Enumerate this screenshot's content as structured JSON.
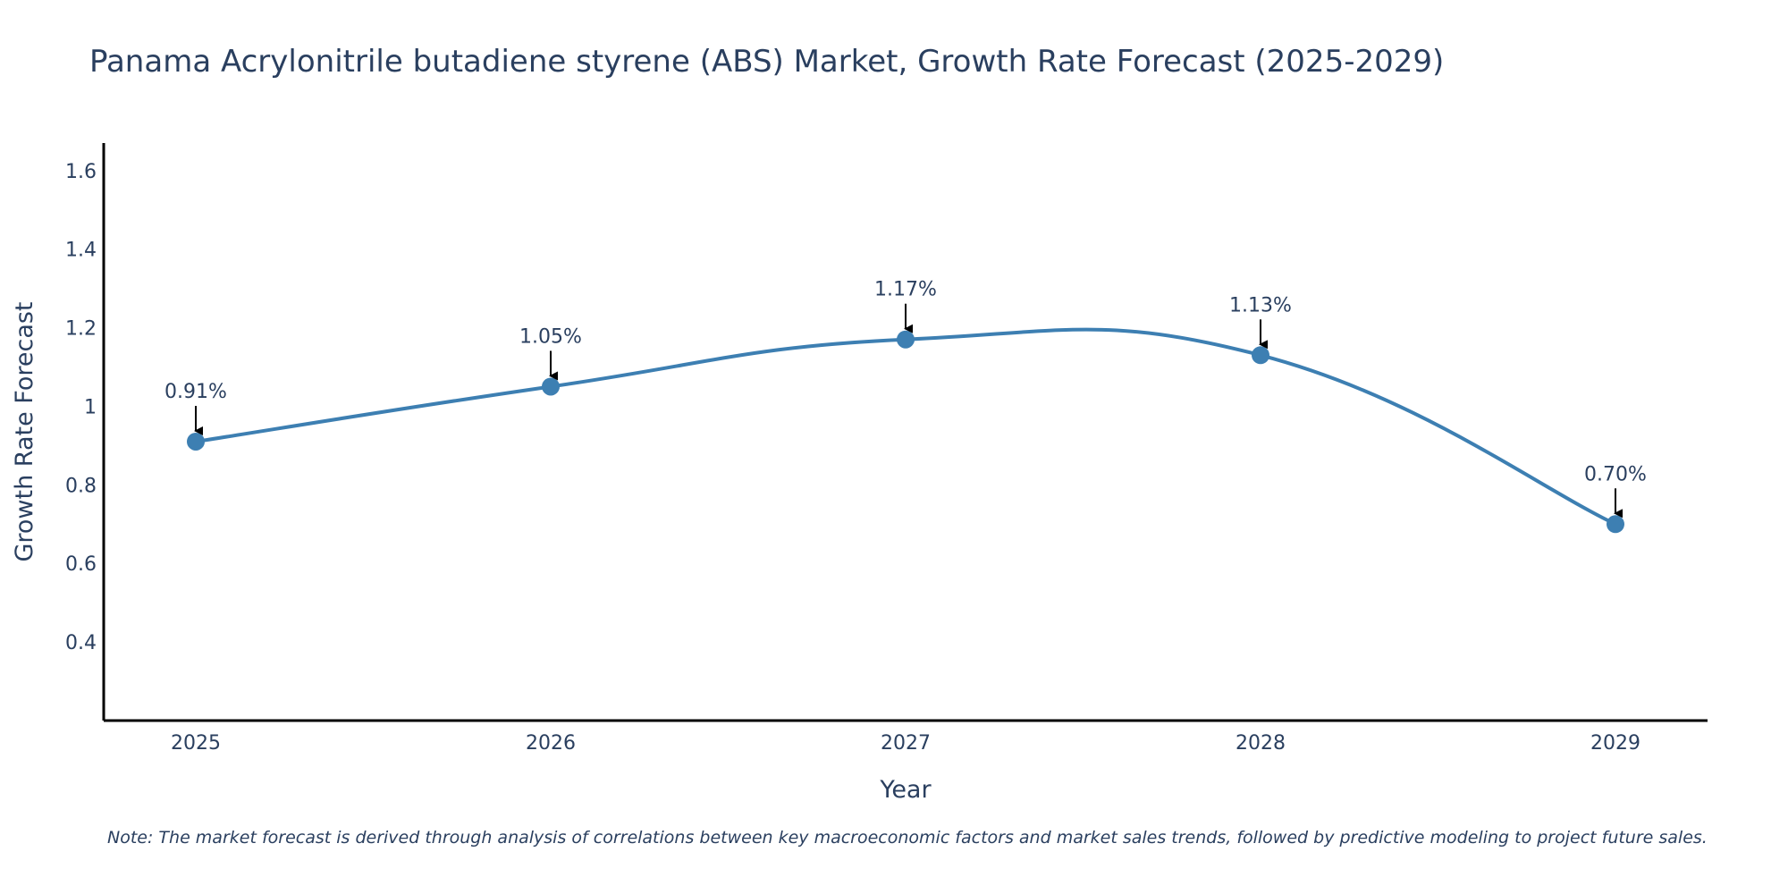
{
  "chart_data": {
    "type": "line",
    "title": "Panama Acrylonitrile butadiene styrene (ABS) Market, Growth Rate Forecast (2025-2029)",
    "xlabel": "Year",
    "ylabel": "Growth Rate Forecast",
    "categories": [
      "2025",
      "2026",
      "2027",
      "2028",
      "2029"
    ],
    "values": [
      0.91,
      1.05,
      1.17,
      1.13,
      0.7
    ],
    "data_labels": [
      "0.91%",
      "1.05%",
      "1.17%",
      "1.13%",
      "0.70%"
    ],
    "ylim": [
      0.2,
      1.67
    ],
    "yticks": [
      0.4,
      0.6,
      0.8,
      1.0,
      1.2,
      1.4,
      1.6
    ],
    "ytick_labels": [
      "0.4",
      "0.6",
      "0.8",
      "1",
      "1.2",
      "1.4",
      "1.6"
    ],
    "line_color": "#3d7fb2",
    "marker_color": "#3d7fb2",
    "annotation_arrow_color": "#000000",
    "grid": false,
    "line_shape": "spline"
  },
  "note": "Note: The market forecast is derived through analysis of correlations between key macroeconomic factors and market sales trends, followed by predictive modeling to project future sales."
}
